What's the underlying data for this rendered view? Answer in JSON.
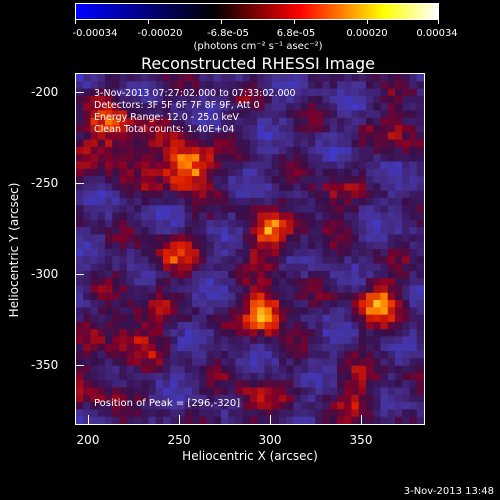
{
  "colorbar": {
    "tick_labels": [
      "-0.00034",
      "-0.00020",
      "-6.8e-05",
      "6.8e-05",
      "0.00020",
      "0.00034"
    ],
    "unit_label": "(photons cm⁻² s⁻¹ asec⁻²)",
    "range": [
      -0.00034,
      0.00034
    ],
    "colors": [
      "#0000ff",
      "#000000",
      "#ff0000",
      "#ffff00",
      "#ffffff"
    ]
  },
  "title": "Reconstructed RHESSI Image",
  "info": {
    "time_range": "3-Nov-2013 07:27:02.000 to 07:33:02.000",
    "detectors": "Detectors: 3F 5F 6F 7F 8F 9F, Att 0",
    "energy_range": "Energy Range: 12.0 - 25.0 keV",
    "clean": "Clean     Total counts: 1.40E+04"
  },
  "peak_label": "Position of Peak = [296,-320]",
  "x_axis": {
    "label": "Heliocentric X (arcsec)",
    "ticks": [
      "200",
      "250",
      "300",
      "350"
    ],
    "range": [
      193,
      385
    ]
  },
  "y_axis": {
    "label": "Heliocentric Y (arcsec)",
    "ticks": [
      "-200",
      "-250",
      "-300",
      "-350"
    ],
    "range": [
      -382,
      -190
    ]
  },
  "footer_timestamp": "3-Nov-2013 13:48",
  "image_grid": {
    "cols": 48,
    "rows": 48,
    "sources": [
      {
        "x": 254,
        "y": -241,
        "amp": 1.0,
        "sigma": 9
      },
      {
        "x": 298,
        "y": -320,
        "amp": 1.0,
        "sigma": 8
      },
      {
        "x": 300,
        "y": -280,
        "amp": 0.55,
        "sigma": 10
      },
      {
        "x": 245,
        "y": -290,
        "amp": 0.5,
        "sigma": 8
      },
      {
        "x": 360,
        "y": -315,
        "amp": 0.55,
        "sigma": 10
      },
      {
        "x": 215,
        "y": -225,
        "amp": 0.55,
        "sigma": 14
      },
      {
        "x": 225,
        "y": -330,
        "amp": 0.45,
        "sigma": 12
      },
      {
        "x": 330,
        "y": -260,
        "amp": 0.35,
        "sigma": 10
      },
      {
        "x": 205,
        "y": -360,
        "amp": 0.35,
        "sigma": 10
      },
      {
        "x": 290,
        "y": -370,
        "amp": 0.4,
        "sigma": 10
      },
      {
        "x": 375,
        "y": -220,
        "amp": 0.4,
        "sigma": 10
      },
      {
        "x": 350,
        "y": -365,
        "amp": 0.4,
        "sigma": 10
      }
    ]
  }
}
